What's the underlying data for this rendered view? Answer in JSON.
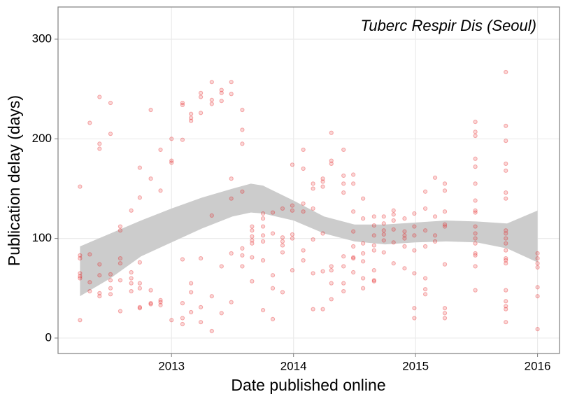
{
  "chart_data": {
    "type": "scatter",
    "annotation": "Tuberc Respir Dis (Seoul)",
    "x_label": "Date published online",
    "y_label": "Publication delay (days)",
    "xlim": [
      2012.07,
      2016.18
    ],
    "ylim": [
      -15.5,
      332.3
    ],
    "xticks": [
      2013,
      2014,
      2015,
      2016
    ],
    "yticks": [
      0,
      100,
      200,
      300
    ],
    "grid": true,
    "point_color": "#e41a1c",
    "columns": [
      {
        "x": 2012.25,
        "values": [
          152,
          83,
          80,
          65,
          62,
          60,
          18
        ]
      },
      {
        "x": 2012.33,
        "values": [
          216,
          84,
          56,
          47
        ]
      },
      {
        "x": 2012.41,
        "values": [
          242,
          195,
          190,
          74,
          63,
          45,
          42
        ]
      },
      {
        "x": 2012.5,
        "values": [
          236,
          205,
          64,
          58,
          50,
          44
        ]
      },
      {
        "x": 2012.58,
        "values": [
          112,
          108,
          80,
          75,
          58,
          27
        ]
      },
      {
        "x": 2012.67,
        "values": [
          128,
          66,
          60,
          55,
          47
        ]
      },
      {
        "x": 2012.74,
        "values": [
          171,
          141,
          76,
          55,
          50,
          31,
          30
        ]
      },
      {
        "x": 2012.83,
        "values": [
          229,
          160,
          48,
          35,
          34
        ]
      },
      {
        "x": 2012.91,
        "values": [
          189,
          148,
          38,
          36,
          33
        ]
      },
      {
        "x": 2013.0,
        "values": [
          200,
          178,
          176,
          18
        ]
      },
      {
        "x": 2013.09,
        "values": [
          236,
          234,
          199,
          79,
          35,
          20,
          14
        ]
      },
      {
        "x": 2013.16,
        "values": [
          225,
          221,
          218,
          55,
          46,
          26
        ]
      },
      {
        "x": 2013.24,
        "values": [
          246,
          242,
          226,
          80,
          31,
          16
        ]
      },
      {
        "x": 2013.33,
        "values": [
          257,
          239,
          235,
          123,
          42,
          7
        ]
      },
      {
        "x": 2013.41,
        "values": [
          249,
          246,
          238,
          72,
          25
        ]
      },
      {
        "x": 2013.49,
        "values": [
          257,
          245,
          160,
          140,
          85,
          36
        ]
      },
      {
        "x": 2013.58,
        "values": [
          229,
          209,
          195,
          147,
          90,
          83,
          72
        ]
      },
      {
        "x": 2013.66,
        "values": [
          102,
          98,
          95,
          112,
          108,
          57,
          81
        ]
      },
      {
        "x": 2013.75,
        "values": [
          125,
          120,
          112,
          103,
          97,
          78,
          28
        ]
      },
      {
        "x": 2013.83,
        "values": [
          126,
          105,
          63,
          50,
          19
        ]
      },
      {
        "x": 2013.91,
        "values": [
          130,
          101,
          97,
          93,
          86,
          46
        ]
      },
      {
        "x": 2013.99,
        "values": [
          174,
          133,
          128,
          104,
          100,
          68
        ]
      },
      {
        "x": 2014.08,
        "values": [
          189,
          170,
          135,
          127,
          88,
          78
        ]
      },
      {
        "x": 2014.16,
        "values": [
          155,
          150,
          130,
          99,
          65,
          29
        ]
      },
      {
        "x": 2014.24,
        "values": [
          160,
          157,
          152,
          105,
          67,
          29
        ]
      },
      {
        "x": 2014.31,
        "values": [
          206,
          178,
          175,
          72,
          68,
          55,
          39
        ]
      },
      {
        "x": 2014.41,
        "values": [
          189,
          163,
          155,
          146,
          82,
          72,
          55,
          47
        ]
      },
      {
        "x": 2014.49,
        "values": [
          164,
          155,
          127,
          107,
          92,
          81,
          80,
          66
        ]
      },
      {
        "x": 2014.57,
        "values": [
          140,
          120,
          95,
          85,
          77,
          60,
          50
        ]
      },
      {
        "x": 2014.66,
        "values": [
          122,
          113,
          103,
          93,
          88,
          68,
          58,
          57
        ]
      },
      {
        "x": 2014.74,
        "values": [
          122,
          115,
          108,
          104,
          98,
          86
        ]
      },
      {
        "x": 2014.82,
        "values": [
          128,
          124,
          118,
          109,
          96,
          75
        ]
      },
      {
        "x": 2014.91,
        "values": [
          120,
          107,
          103,
          100,
          92,
          70
        ]
      },
      {
        "x": 2014.99,
        "values": [
          125,
          112,
          103,
          88,
          65,
          30,
          20
        ]
      },
      {
        "x": 2015.08,
        "values": [
          147,
          130,
          108,
          92,
          60,
          49,
          44
        ]
      },
      {
        "x": 2015.16,
        "values": [
          161,
          122,
          103,
          97
        ]
      },
      {
        "x": 2015.24,
        "values": [
          155,
          148,
          127,
          114,
          112,
          74,
          30,
          25,
          20
        ]
      },
      {
        "x": 2015.49,
        "values": [
          217,
          207,
          203,
          180,
          172,
          155,
          138,
          128,
          126,
          112,
          105,
          100,
          95,
          85,
          83,
          72,
          48
        ]
      },
      {
        "x": 2015.74,
        "values": [
          267,
          213,
          198,
          175,
          168,
          146,
          140,
          108,
          105,
          100,
          95,
          88,
          80,
          78,
          75,
          48,
          37,
          32,
          29,
          16
        ]
      },
      {
        "x": 2016.0,
        "values": [
          85,
          80,
          75,
          71,
          51,
          42,
          9
        ]
      }
    ],
    "band": {
      "color": "#cccccc",
      "x": [
        2012.25,
        2012.5,
        2012.75,
        2013.0,
        2013.25,
        2013.5,
        2013.65,
        2013.75,
        2014.0,
        2014.25,
        2014.5,
        2014.75,
        2015.0,
        2015.25,
        2015.5,
        2015.75,
        2016.0
      ],
      "lower": [
        42,
        60,
        82,
        96,
        110,
        122,
        126,
        125,
        118,
        105,
        97,
        94,
        96,
        97,
        96,
        90,
        76
      ],
      "upper": [
        92,
        105,
        118,
        130,
        141,
        150,
        155,
        153,
        138,
        122,
        114,
        114,
        116,
        118,
        117,
        115,
        128
      ]
    }
  }
}
